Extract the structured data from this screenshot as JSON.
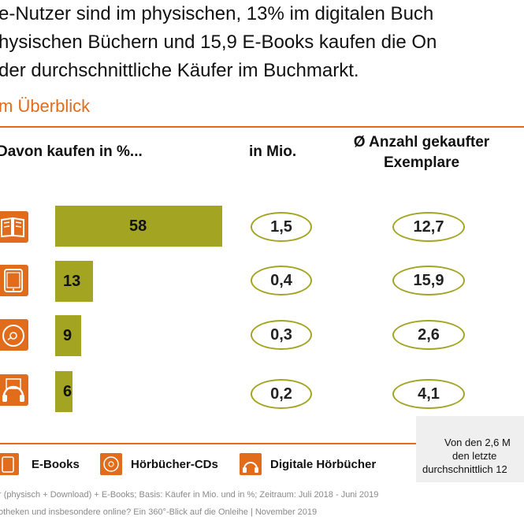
{
  "headline": {
    "line1": "e-Nutzer sind im physischen, 13% im digitalen Buch",
    "line2": "hysischen Büchern und 15,9 E-Books kaufen die On",
    "line3": "der durchschnittliche Käufer im Buchmarkt."
  },
  "subtitle": "m Überblick",
  "accent_color": "#e06c1c",
  "bar_color": "#a3a522",
  "columns": {
    "share": "Davon kaufen in %...",
    "mio": "in Mio.",
    "avg_line1": "Ø Anzahl gekaufter",
    "avg_line2": "Exemplare"
  },
  "rows": [
    {
      "icon": "book-icon",
      "percent": "58",
      "mio": "1,5",
      "avg": "12,7"
    },
    {
      "icon": "tablet-icon",
      "percent": "13",
      "mio": "0,4",
      "avg": "15,9"
    },
    {
      "icon": "cd-icon",
      "percent": "9",
      "mio": "0,3",
      "avg": "2,6"
    },
    {
      "icon": "headphones-icon",
      "percent": "6",
      "mio": "0,2",
      "avg": "4,1"
    }
  ],
  "chart_data": {
    "type": "bar",
    "orientation": "horizontal",
    "categories": [
      "Bücher",
      "E-Books",
      "Hörbücher-CDs",
      "Digitale Hörbücher"
    ],
    "values": [
      58,
      13,
      9,
      6
    ],
    "xlabel": "Davon kaufen in %...",
    "xlim": [
      0,
      100
    ],
    "table": {
      "in_mio": [
        "1,5",
        "0,4",
        "0,3",
        "0,2"
      ],
      "avg_exemplare": [
        "12,7",
        "15,9",
        "2,6",
        "4,1"
      ]
    }
  },
  "legend": [
    {
      "icon": "tablet-icon",
      "label": "E-Books"
    },
    {
      "icon": "cd-icon",
      "label": "Hörbücher-CDs"
    },
    {
      "icon": "headphones-icon",
      "label": "Digitale Hörbücher"
    }
  ],
  "note": {
    "line1": "Von den 2,6 M",
    "line2": "den letzte",
    "line3": "durchschnittlich 12"
  },
  "footer": {
    "line1": "r (physisch + Download) + E-Books; Basis: Käufer in Mio. und in %; Zeitraum: Juli 2018 - Juni 2019",
    "line2": "otheken und insbesondere online? Ein 360°-Blick auf die Onleihe | November 2019"
  }
}
